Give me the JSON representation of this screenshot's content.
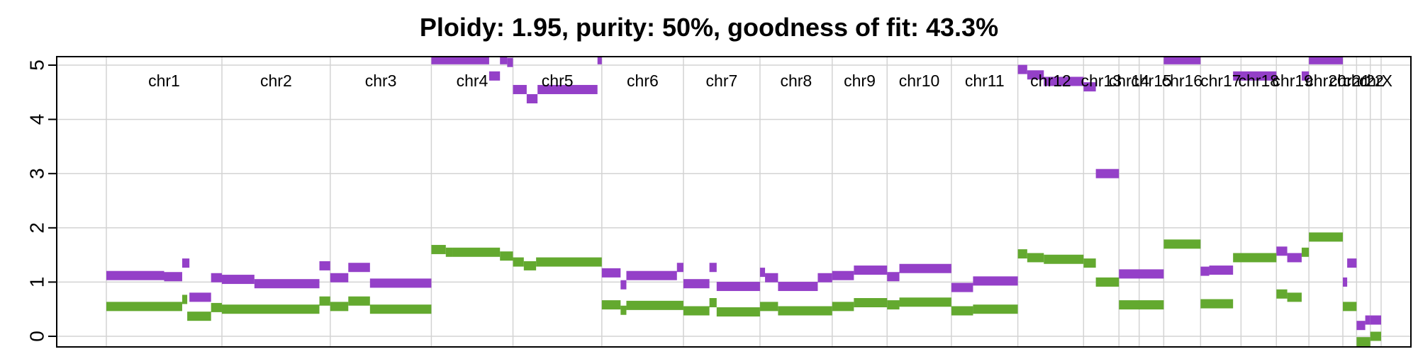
{
  "chart_data": {
    "type": "scatter",
    "title": "Ploidy: 1.95, purity: 50%, goodness of fit: 43.3%",
    "xlabel": "",
    "ylabel": "",
    "ylim": [
      0,
      5
    ],
    "yticks": [
      "0",
      "1",
      "2",
      "3",
      "4",
      "5"
    ],
    "grid": true,
    "legend": "none",
    "colors": {
      "major": "#9440c8",
      "minor": "#63a92f",
      "grid": "#d3d3d3"
    },
    "genome_range": [
      0,
      1500
    ],
    "chromosomes": [
      {
        "name": "chr1",
        "start": 0,
        "end": 160
      },
      {
        "name": "chr2",
        "start": 160,
        "end": 310
      },
      {
        "name": "chr3",
        "start": 310,
        "end": 450
      },
      {
        "name": "chr4",
        "start": 450,
        "end": 563
      },
      {
        "name": "chr5",
        "start": 563,
        "end": 686
      },
      {
        "name": "chr6",
        "start": 686,
        "end": 799
      },
      {
        "name": "chr7",
        "start": 799,
        "end": 905
      },
      {
        "name": "chr8",
        "start": 905,
        "end": 1005
      },
      {
        "name": "chr9",
        "start": 1005,
        "end": 1081
      },
      {
        "name": "chr10",
        "start": 1081,
        "end": 1170
      },
      {
        "name": "chr11",
        "start": 1170,
        "end": 1262
      },
      {
        "name": "chr12",
        "start": 1262,
        "end": 1353
      },
      {
        "name": "chr13",
        "start": 1353,
        "end": 1402
      },
      {
        "name": "chr14",
        "start": 1402,
        "end": 1430
      },
      {
        "name": "chr15",
        "start": 1430,
        "end": 1464
      },
      {
        "name": "chr16",
        "start": 1464,
        "end": 1515
      },
      {
        "name": "chr17",
        "start": 1515,
        "end": 1571
      },
      {
        "name": "chr18",
        "start": 1571,
        "end": 1620
      },
      {
        "name": "chr19",
        "start": 1620,
        "end": 1665
      },
      {
        "name": "chr20",
        "start": 1665,
        "end": 1712
      },
      {
        "name": "chr21",
        "start": 1712,
        "end": 1731
      },
      {
        "name": "chr22",
        "start": 1731,
        "end": 1750
      },
      {
        "name": "chrX",
        "start": 1750,
        "end": 1765
      }
    ],
    "series": [
      {
        "name": "",
        "color": "#9440c8",
        "segments": [
          [
            0,
            80,
            1.12
          ],
          [
            80,
            105,
            1.1
          ],
          [
            105,
            115,
            1.35
          ],
          [
            115,
            145,
            0.72
          ],
          [
            145,
            160,
            1.08
          ],
          [
            160,
            205,
            1.05
          ],
          [
            205,
            295,
            0.97
          ],
          [
            295,
            310,
            1.3
          ],
          [
            310,
            335,
            1.08
          ],
          [
            335,
            365,
            1.27
          ],
          [
            365,
            450,
            0.98
          ],
          [
            450,
            530,
            5.1
          ],
          [
            530,
            545,
            4.8
          ],
          [
            545,
            555,
            5.1
          ],
          [
            555,
            563,
            5.05
          ],
          [
            563,
            582,
            4.55
          ],
          [
            582,
            597,
            4.38
          ],
          [
            597,
            680,
            4.55
          ],
          [
            680,
            686,
            5.1
          ],
          [
            686,
            712,
            1.17
          ],
          [
            712,
            720,
            0.95
          ],
          [
            720,
            790,
            1.12
          ],
          [
            790,
            799,
            1.27
          ],
          [
            799,
            835,
            0.97
          ],
          [
            835,
            845,
            1.27
          ],
          [
            845,
            905,
            0.92
          ],
          [
            905,
            912,
            1.18
          ],
          [
            912,
            930,
            1.08
          ],
          [
            930,
            985,
            0.92
          ],
          [
            985,
            1005,
            1.08
          ],
          [
            1005,
            1035,
            1.12
          ],
          [
            1035,
            1081,
            1.22
          ],
          [
            1081,
            1098,
            1.1
          ],
          [
            1098,
            1170,
            1.25
          ],
          [
            1170,
            1200,
            0.9
          ],
          [
            1200,
            1262,
            1.02
          ],
          [
            1262,
            1275,
            4.92
          ],
          [
            1275,
            1298,
            4.82
          ],
          [
            1298,
            1353,
            4.7
          ],
          [
            1353,
            1370,
            4.6
          ],
          [
            1370,
            1402,
            3.0
          ],
          [
            1402,
            1464,
            1.15
          ],
          [
            1464,
            1515,
            5.1
          ],
          [
            1515,
            1527,
            1.2
          ],
          [
            1527,
            1560,
            1.22
          ],
          [
            1560,
            1620,
            4.8
          ],
          [
            1620,
            1635,
            1.57
          ],
          [
            1635,
            1655,
            1.45
          ],
          [
            1655,
            1665,
            4.8
          ],
          [
            1665,
            1712,
            5.1
          ],
          [
            1712,
            1718,
            1.0
          ],
          [
            1718,
            1731,
            1.35
          ],
          [
            1731,
            1743,
            0.2
          ],
          [
            1743,
            1750,
            0.3
          ],
          [
            1750,
            1765,
            0.3
          ]
        ]
      },
      {
        "name": "",
        "color": "#63a92f",
        "segments": [
          [
            0,
            105,
            0.55
          ],
          [
            105,
            112,
            0.68
          ],
          [
            112,
            145,
            0.37
          ],
          [
            145,
            160,
            0.53
          ],
          [
            160,
            295,
            0.5
          ],
          [
            295,
            310,
            0.65
          ],
          [
            310,
            335,
            0.55
          ],
          [
            335,
            365,
            0.65
          ],
          [
            365,
            450,
            0.5
          ],
          [
            450,
            470,
            1.6
          ],
          [
            470,
            480,
            1.55
          ],
          [
            480,
            545,
            1.55
          ],
          [
            545,
            563,
            1.48
          ],
          [
            563,
            578,
            1.37
          ],
          [
            578,
            595,
            1.3
          ],
          [
            595,
            686,
            1.37
          ],
          [
            686,
            712,
            0.58
          ],
          [
            712,
            720,
            0.48
          ],
          [
            720,
            799,
            0.57
          ],
          [
            799,
            835,
            0.47
          ],
          [
            835,
            845,
            0.62
          ],
          [
            845,
            905,
            0.45
          ],
          [
            905,
            930,
            0.55
          ],
          [
            930,
            1005,
            0.47
          ],
          [
            1005,
            1035,
            0.55
          ],
          [
            1035,
            1081,
            0.62
          ],
          [
            1081,
            1098,
            0.58
          ],
          [
            1098,
            1170,
            0.63
          ],
          [
            1170,
            1200,
            0.47
          ],
          [
            1200,
            1262,
            0.5
          ],
          [
            1262,
            1275,
            1.52
          ],
          [
            1275,
            1298,
            1.45
          ],
          [
            1298,
            1353,
            1.42
          ],
          [
            1353,
            1370,
            1.35
          ],
          [
            1370,
            1402,
            1.0
          ],
          [
            1402,
            1464,
            0.58
          ],
          [
            1464,
            1515,
            1.7
          ],
          [
            1515,
            1560,
            0.6
          ],
          [
            1560,
            1620,
            1.45
          ],
          [
            1620,
            1635,
            0.78
          ],
          [
            1635,
            1655,
            0.72
          ],
          [
            1655,
            1665,
            1.55
          ],
          [
            1665,
            1712,
            1.83
          ],
          [
            1712,
            1731,
            0.55
          ],
          [
            1731,
            1750,
            -0.1
          ],
          [
            1750,
            1765,
            0.0
          ]
        ]
      }
    ]
  }
}
